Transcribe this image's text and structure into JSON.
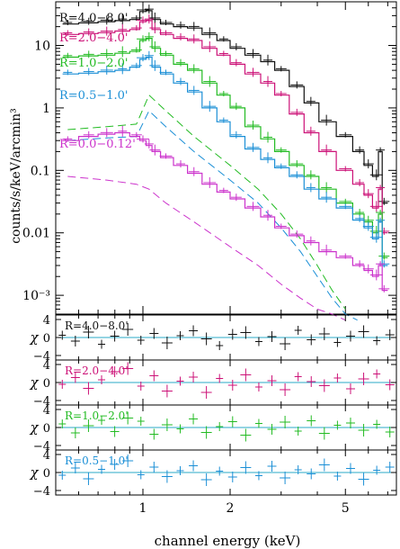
{
  "chart_data": {
    "type": "line",
    "xlabel": "channel energy (keV)",
    "x_scale": "log",
    "xlim": [
      0.5,
      7.5
    ],
    "x_ticks": [
      {
        "value": 1,
        "label": "1"
      },
      {
        "value": 2,
        "label": "2"
      },
      {
        "value": 5,
        "label": "5"
      }
    ],
    "main_panel": {
      "ylabel": "counts/s/keV/arcmin³",
      "y_scale": "log",
      "ylim": [
        0.0005,
        50
      ],
      "y_ticks": [
        {
          "value": 10,
          "label": "10"
        },
        {
          "value": 1,
          "label": "1"
        },
        {
          "value": 0.1,
          "label": "0.1"
        },
        {
          "value": 0.01,
          "label": "0.01"
        },
        {
          "value": 0.001,
          "label": "10⁻³"
        }
      ],
      "series": [
        {
          "name": "R=4.0−8.0'",
          "color": "#111111",
          "x": [
            0.55,
            0.65,
            0.75,
            0.85,
            0.95,
            1.0,
            1.05,
            1.1,
            1.2,
            1.35,
            1.5,
            1.7,
            1.9,
            2.1,
            2.4,
            2.7,
            3.0,
            3.4,
            3.8,
            4.3,
            5.0,
            5.6,
            6.0,
            6.4,
            6.6,
            6.8
          ],
          "y": [
            22,
            23,
            24,
            25,
            26,
            35,
            36,
            26,
            22,
            20,
            19,
            15,
            12,
            9,
            7,
            5.5,
            4,
            2.2,
            1.2,
            0.6,
            0.35,
            0.2,
            0.12,
            0.08,
            0.2,
            0.03
          ]
        },
        {
          "name": "R=2.0−4.0'",
          "color": "#cc1177",
          "x": [
            0.55,
            0.65,
            0.75,
            0.85,
            0.95,
            1.0,
            1.05,
            1.1,
            1.2,
            1.35,
            1.5,
            1.7,
            1.9,
            2.1,
            2.4,
            2.7,
            3.0,
            3.4,
            3.8,
            4.3,
            5.0,
            5.6,
            6.0,
            6.4,
            6.6,
            6.8
          ],
          "y": [
            15,
            15.5,
            16,
            17,
            18,
            24,
            25,
            18,
            15,
            13,
            12,
            9,
            7,
            5,
            3.5,
            2.5,
            1.6,
            0.8,
            0.4,
            0.2,
            0.1,
            0.06,
            0.04,
            0.025,
            0.05,
            0.01
          ]
        },
        {
          "name": "R=1.0−2.0'",
          "color": "#22bb22",
          "x": [
            0.55,
            0.65,
            0.75,
            0.85,
            0.95,
            1.0,
            1.05,
            1.1,
            1.2,
            1.35,
            1.5,
            1.7,
            1.9,
            2.1,
            2.4,
            2.7,
            3.0,
            3.4,
            3.8,
            4.3,
            5.0,
            5.6,
            6.0,
            6.4,
            6.6,
            6.8
          ],
          "y": [
            6.5,
            6.8,
            7,
            7.5,
            8,
            12,
            13,
            9,
            7,
            5,
            4,
            2.5,
            1.6,
            1.0,
            0.5,
            0.32,
            0.2,
            0.12,
            0.08,
            0.05,
            0.03,
            0.02,
            0.015,
            0.01,
            0.02,
            0.004
          ]
        },
        {
          "name": "R=0.5−1.0'",
          "color": "#1b8fd6",
          "x": [
            0.55,
            0.65,
            0.75,
            0.85,
            0.95,
            1.0,
            1.05,
            1.1,
            1.2,
            1.35,
            1.5,
            1.7,
            1.9,
            2.1,
            2.4,
            2.7,
            3.0,
            3.4,
            3.8,
            4.3,
            5.0,
            5.6,
            6.0,
            6.4,
            6.6,
            6.8
          ],
          "y": [
            3.5,
            3.6,
            3.8,
            4,
            4.5,
            6,
            6.5,
            4.5,
            3.5,
            2.5,
            1.8,
            1.0,
            0.6,
            0.35,
            0.22,
            0.15,
            0.11,
            0.08,
            0.05,
            0.035,
            0.025,
            0.016,
            0.012,
            0.008,
            0.015,
            0.003
          ]
        },
        {
          "name": "R=0.0−0.12'",
          "color": "#cc33cc",
          "x": [
            0.55,
            0.65,
            0.75,
            0.85,
            0.95,
            1.0,
            1.05,
            1.1,
            1.2,
            1.35,
            1.5,
            1.7,
            1.9,
            2.1,
            2.4,
            2.7,
            3.0,
            3.4,
            3.8,
            4.3,
            5.0,
            5.6,
            6.0,
            6.4,
            6.6,
            6.8
          ],
          "y": [
            0.3,
            0.35,
            0.38,
            0.4,
            0.35,
            0.3,
            0.25,
            0.2,
            0.16,
            0.12,
            0.09,
            0.06,
            0.045,
            0.035,
            0.025,
            0.018,
            0.012,
            0.009,
            0.007,
            0.005,
            0.004,
            0.003,
            0.0025,
            0.002,
            0.003,
            0.0012
          ]
        }
      ],
      "background_series": [
        {
          "color": "#22bb22",
          "dashed": true,
          "x": [
            0.55,
            0.75,
            0.95,
            1.05,
            1.2,
            1.5,
            2.0,
            2.5,
            3.0,
            3.5,
            4.0,
            4.5,
            5.0
          ],
          "y": [
            0.45,
            0.5,
            0.55,
            1.6,
            0.9,
            0.35,
            0.12,
            0.05,
            0.02,
            0.008,
            0.003,
            0.0012,
            0.0006
          ]
        },
        {
          "color": "#1b8fd6",
          "dashed": true,
          "x": [
            0.55,
            0.75,
            0.95,
            1.05,
            1.2,
            1.5,
            2.0,
            2.5,
            3.0,
            3.5,
            4.0,
            4.5,
            5.0,
            5.5
          ],
          "y": [
            0.3,
            0.33,
            0.35,
            0.9,
            0.5,
            0.2,
            0.07,
            0.03,
            0.012,
            0.005,
            0.002,
            0.0009,
            0.0005,
            0.0004
          ]
        },
        {
          "color": "#cc33cc",
          "dashed": true,
          "x": [
            0.55,
            0.75,
            0.95,
            1.05,
            1.2,
            1.5,
            2.0,
            2.5,
            3.0,
            3.5,
            4.0,
            4.5,
            5.0
          ],
          "y": [
            0.08,
            0.07,
            0.06,
            0.05,
            0.03,
            0.015,
            0.006,
            0.003,
            0.0015,
            0.0009,
            0.0006,
            0.0005,
            0.0004
          ]
        }
      ]
    },
    "residual_panels": [
      {
        "label": "R=4.0−8.0'",
        "color": "#111111",
        "ylabel": "χ",
        "ylim": [
          -5,
          5
        ],
        "y_ticks": [
          {
            "value": 4,
            "label": "4"
          },
          {
            "value": 0,
            "label": "0"
          },
          {
            "value": -4,
            "label": "−4"
          }
        ],
        "residuals": [
          0.5,
          -0.8,
          1.2,
          -1.5,
          0.3,
          1.8,
          -0.6,
          0.9,
          -1.2,
          0.4,
          1.5,
          -0.3,
          -1.8,
          0.7,
          1.1,
          -0.9,
          0.2,
          -1.4,
          1.6,
          -0.5,
          0.8,
          -1.1,
          0.3,
          1.3,
          -0.7,
          0.6
        ]
      },
      {
        "label": "R=2.0−4.0'",
        "color": "#cc1177",
        "ylabel": "χ",
        "ylim": [
          -5,
          5
        ],
        "y_ticks": [
          {
            "value": 4,
            "label": "4"
          },
          {
            "value": 0,
            "label": "0"
          },
          {
            "value": -4,
            "label": "−4"
          }
        ],
        "residuals": [
          -0.4,
          1.1,
          -1.3,
          0.6,
          2.4,
          3.1,
          -0.8,
          1.5,
          -1.9,
          0.3,
          1.2,
          -2.2,
          0.9,
          -0.6,
          1.7,
          -1.0,
          0.4,
          -1.6,
          1.3,
          0.2,
          -0.7,
          1.0,
          -1.4,
          0.8,
          1.9,
          -0.5
        ]
      },
      {
        "label": "R=1.0−2.0'",
        "color": "#22bb22",
        "ylabel": "χ",
        "ylim": [
          -5,
          5
        ],
        "y_ticks": [
          {
            "value": 4,
            "label": "4"
          },
          {
            "value": 0,
            "label": "0"
          },
          {
            "value": -4,
            "label": "−4"
          }
        ],
        "residuals": [
          0.8,
          -1.2,
          0.4,
          1.6,
          -0.9,
          2.1,
          1.4,
          -1.5,
          0.6,
          -0.3,
          1.9,
          -1.1,
          0.2,
          1.3,
          -1.7,
          0.9,
          -0.4,
          1.2,
          -0.8,
          1.5,
          -1.3,
          0.5,
          1.0,
          -0.6,
          0.7,
          -1.0
        ]
      },
      {
        "label": "R=0.5−1.0'",
        "color": "#1b8fd6",
        "ylabel": "χ",
        "ylim": [
          -5,
          5
        ],
        "y_ticks": [
          {
            "value": 4,
            "label": "4"
          },
          {
            "value": 0,
            "label": "0"
          },
          {
            "value": -4,
            "label": "−4"
          }
        ],
        "residuals": [
          -0.6,
          1.0,
          -1.4,
          0.7,
          1.8,
          2.6,
          -0.5,
          1.2,
          -0.9,
          0.4,
          1.5,
          -1.6,
          0.3,
          -1.0,
          1.1,
          -0.7,
          1.4,
          -1.2,
          0.6,
          -0.3,
          1.7,
          -0.8,
          0.9,
          -1.5,
          0.5,
          1.2
        ]
      }
    ]
  }
}
